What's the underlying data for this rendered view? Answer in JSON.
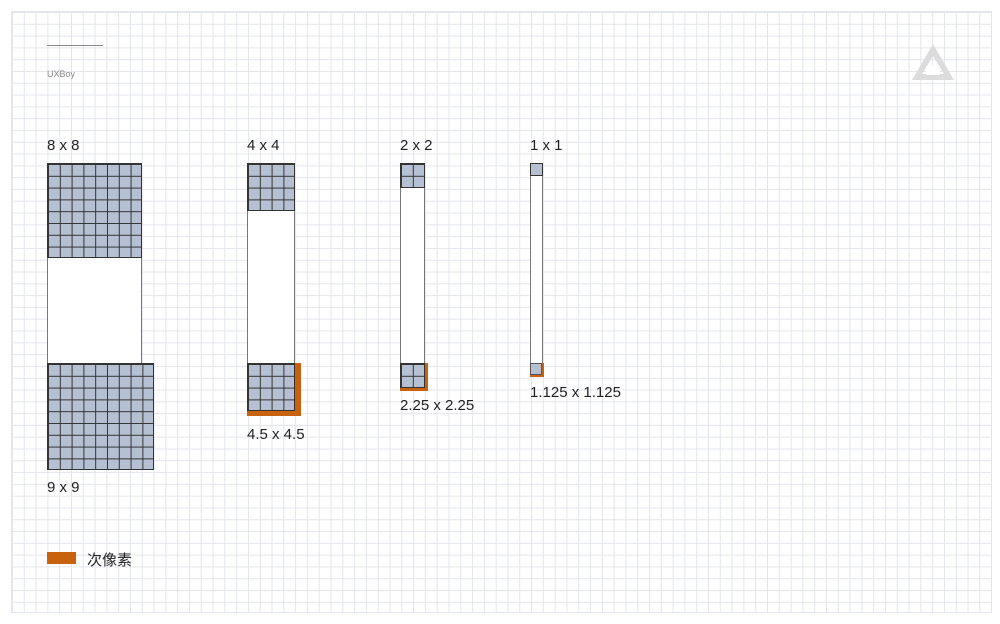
{
  "brand": "UXBoy",
  "accent_color": "#c8620f",
  "cell_color": "#b5c0d3",
  "groups": [
    {
      "top_label": "8 x 8",
      "bottom_label": "9 x 9"
    },
    {
      "top_label": "4 x 4",
      "bottom_label": "4.5 x 4.5"
    },
    {
      "top_label": "2 x 2",
      "bottom_label": "2.25 x 2.25"
    },
    {
      "top_label": "1 x 1",
      "bottom_label": "1.125 x 1.125"
    }
  ],
  "legend": {
    "label": "次像素"
  },
  "logo_icon": "triangle-logo-icon"
}
